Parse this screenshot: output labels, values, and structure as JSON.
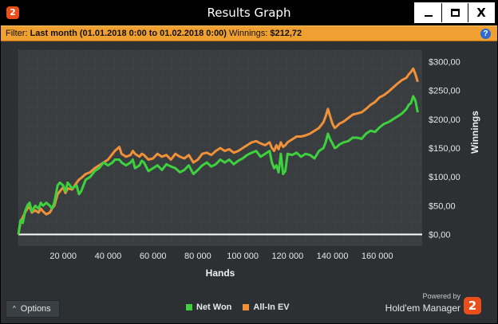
{
  "window": {
    "title": "Results Graph",
    "app_icon": "2",
    "minimize_icon": "minimize-icon",
    "maximize_icon": "maximize-icon",
    "close_label": "X"
  },
  "filter": {
    "label": "Filter:",
    "period": "Last month (01.01.2018 0:00 to 01.02.2018 0:00)",
    "winnings_label": "Winnings:",
    "winnings_value": "$212,72",
    "help_icon": "?"
  },
  "colors": {
    "net_won": "#3ed13e",
    "all_in_ev": "#f0913a",
    "zero_line": "#ffffff",
    "plot_bg": "#393d40",
    "grid": "#50555a"
  },
  "chart_data": {
    "type": "line",
    "xlabel": "Hands",
    "ylabel": "Winnings",
    "xlim": [
      0,
      180000
    ],
    "ylim": [
      -20,
      320
    ],
    "x_ticks": [
      20000,
      40000,
      60000,
      80000,
      100000,
      120000,
      140000,
      160000
    ],
    "x_tick_labels": [
      "20 000",
      "40 000",
      "60 000",
      "80 000",
      "100 000",
      "120 000",
      "140 000",
      "160 000"
    ],
    "y_ticks": [
      0,
      50,
      100,
      150,
      200,
      250,
      300
    ],
    "y_tick_labels": [
      "$0,00",
      "$50,00",
      "$100,00",
      "$150,00",
      "$200,00",
      "$250,00",
      "$300,00"
    ],
    "grid": true,
    "series": [
      {
        "name": "Net Won",
        "color": "#3ed13e",
        "x": [
          0,
          1000,
          2000,
          3000,
          4000,
          5000,
          6000,
          7500,
          9000,
          10000,
          11000,
          12500,
          14000,
          15000,
          16000,
          17500,
          18500,
          20000,
          21000,
          22000,
          24000,
          26000,
          27000,
          28000,
          30000,
          32000,
          34000,
          36000,
          38000,
          40000,
          42000,
          43000,
          45000,
          46000,
          48000,
          50000,
          51000,
          52000,
          54000,
          55000,
          56000,
          58000,
          60000,
          62000,
          64000,
          66000,
          68000,
          70000,
          72000,
          74000,
          76000,
          78000,
          80000,
          82000,
          84000,
          86000,
          88000,
          90000,
          92000,
          94000,
          96000,
          98000,
          100000,
          102000,
          104000,
          106000,
          108000,
          110000,
          112000,
          113000,
          114000,
          115000,
          116000,
          117000,
          118000,
          119000,
          120000,
          122000,
          124000,
          126000,
          128000,
          130000,
          132000,
          134000,
          136000,
          137000,
          138000,
          139000,
          140000,
          141000,
          142000,
          143000,
          145000,
          147000,
          149000,
          151000,
          153000,
          155000,
          157000,
          159000,
          161000,
          163000,
          165000,
          167000,
          169000,
          171000,
          173000,
          174000,
          175000,
          176000,
          177000,
          178000
        ],
        "y": [
          0,
          25,
          20,
          40,
          50,
          55,
          40,
          50,
          45,
          55,
          50,
          55,
          50,
          45,
          55,
          85,
          90,
          85,
          75,
          90,
          80,
          85,
          70,
          75,
          95,
          100,
          110,
          115,
          125,
          120,
          125,
          130,
          130,
          125,
          120,
          125,
          130,
          115,
          120,
          128,
          125,
          110,
          115,
          120,
          112,
          122,
          118,
          115,
          108,
          112,
          120,
          105,
          112,
          120,
          125,
          118,
          122,
          130,
          125,
          130,
          122,
          128,
          132,
          138,
          142,
          145,
          135,
          140,
          145,
          125,
          115,
          120,
          108,
          140,
          105,
          110,
          140,
          138,
          142,
          135,
          140,
          138,
          132,
          145,
          150,
          160,
          175,
          165,
          158,
          150,
          152,
          156,
          160,
          162,
          168,
          168,
          166,
          175,
          180,
          178,
          186,
          192,
          195,
          200,
          205,
          210,
          218,
          225,
          228,
          240,
          232,
          212
        ]
      },
      {
        "name": "All-In EV",
        "color": "#f0913a",
        "x": [
          0,
          1000,
          2000,
          3000,
          4000,
          5000,
          6000,
          7500,
          9000,
          10000,
          11000,
          12500,
          14000,
          15000,
          16000,
          17500,
          18500,
          20000,
          21000,
          22000,
          24000,
          26000,
          27000,
          28000,
          30000,
          32000,
          34000,
          36000,
          38000,
          40000,
          42000,
          43000,
          45000,
          46000,
          48000,
          50000,
          51000,
          52000,
          54000,
          55000,
          56000,
          58000,
          60000,
          62000,
          64000,
          66000,
          68000,
          70000,
          72000,
          74000,
          76000,
          78000,
          80000,
          82000,
          84000,
          86000,
          88000,
          90000,
          92000,
          94000,
          96000,
          98000,
          100000,
          102000,
          104000,
          106000,
          108000,
          110000,
          112000,
          113000,
          114000,
          115000,
          116000,
          117000,
          118000,
          119000,
          120000,
          122000,
          124000,
          126000,
          128000,
          130000,
          132000,
          134000,
          136000,
          137000,
          138000,
          139000,
          140000,
          141000,
          142000,
          143000,
          145000,
          147000,
          149000,
          151000,
          153000,
          155000,
          157000,
          159000,
          161000,
          163000,
          165000,
          167000,
          169000,
          171000,
          173000,
          174000,
          175000,
          176000,
          177000,
          178000
        ],
        "y": [
          0,
          22,
          30,
          38,
          45,
          48,
          38,
          42,
          38,
          45,
          40,
          35,
          38,
          45,
          50,
          70,
          75,
          82,
          72,
          80,
          78,
          90,
          95,
          98,
          105,
          108,
          115,
          120,
          125,
          130,
          140,
          145,
          152,
          140,
          135,
          138,
          145,
          140,
          135,
          140,
          138,
          130,
          132,
          140,
          135,
          138,
          130,
          140,
          135,
          132,
          138,
          125,
          130,
          140,
          142,
          138,
          145,
          150,
          145,
          148,
          142,
          145,
          150,
          155,
          160,
          162,
          158,
          155,
          160,
          150,
          145,
          155,
          148,
          160,
          152,
          155,
          160,
          165,
          170,
          170,
          172,
          175,
          180,
          185,
          195,
          205,
          218,
          205,
          192,
          185,
          188,
          192,
          196,
          202,
          208,
          210,
          212,
          218,
          225,
          230,
          238,
          242,
          248,
          255,
          262,
          268,
          272,
          278,
          282,
          288,
          278,
          265
        ]
      }
    ]
  },
  "legend": [
    {
      "label": "Net Won",
      "color": "#3ed13e"
    },
    {
      "label": "All-In EV",
      "color": "#f0913a"
    }
  ],
  "options": {
    "label": "Options",
    "chevron": "^"
  },
  "branding": {
    "powered_by": "Powered by",
    "product": "Hold'em Manager",
    "logo_text": "2"
  }
}
